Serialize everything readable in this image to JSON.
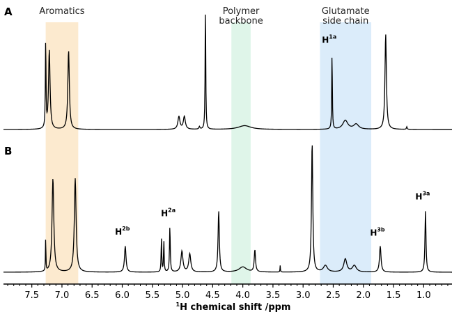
{
  "chart_data": {
    "type": "line",
    "xlabel_prefix": "1",
    "xlabel": "H chemical shift /ppm",
    "xlim": [
      7.97,
      0.53
    ],
    "x_ticks": [
      7.5,
      7.0,
      6.5,
      6.0,
      5.5,
      5.0,
      4.5,
      4.0,
      3.5,
      3.0,
      2.5,
      2.0,
      1.5,
      1.0
    ],
    "x_tick_labels": [
      "7.5",
      "7.0",
      "6.5",
      "6.0",
      "5.5",
      "5.0",
      "4.5",
      "4.0",
      "3.5",
      "3.0",
      "2.5",
      "2.0",
      "1.5",
      "1.0"
    ],
    "regions": [
      {
        "label_lines": [
          "Aromatics"
        ],
        "range": [
          7.27,
          6.73
        ],
        "color": "#fbe3bf"
      },
      {
        "label_lines": [
          "Polymer",
          "backbone"
        ],
        "range": [
          4.19,
          3.87
        ],
        "color": "#d4f1e2"
      },
      {
        "label_lines": [
          "Glutamate",
          "side chain"
        ],
        "range": [
          2.72,
          1.87
        ],
        "color": "#cfe6f8"
      }
    ],
    "series": [
      {
        "name": "A",
        "peaks": [
          {
            "ppm": 7.27,
            "height": 0.7,
            "width": 0.012
          },
          {
            "ppm": 7.21,
            "height": 0.62,
            "width": 0.03
          },
          {
            "ppm": 6.89,
            "height": 0.62,
            "width": 0.03
          },
          {
            "ppm": 5.06,
            "height": 0.1,
            "width": 0.04
          },
          {
            "ppm": 4.97,
            "height": 0.1,
            "width": 0.04
          },
          {
            "ppm": 4.62,
            "height": 1.0,
            "width": 0.012
          },
          {
            "ppm": 4.72,
            "height": 0.02,
            "width": 0.02
          },
          {
            "ppm": 3.97,
            "height": 0.03,
            "width": 0.25
          },
          {
            "ppm": 2.52,
            "height": 0.6,
            "width": 0.012
          },
          {
            "ppm": 2.3,
            "height": 0.07,
            "width": 0.1
          },
          {
            "ppm": 2.12,
            "height": 0.04,
            "width": 0.1
          },
          {
            "ppm": 1.63,
            "height": 0.75,
            "width": 0.028
          },
          {
            "ppm": 1.28,
            "height": 0.02,
            "width": 0.015
          }
        ],
        "peak_labels": [
          {
            "text": "H",
            "sup": "1a",
            "ppm": 2.52,
            "level": 0.68
          }
        ]
      },
      {
        "name": "B",
        "peaks": [
          {
            "ppm": 7.27,
            "height": 0.28,
            "width": 0.008
          },
          {
            "ppm": 7.15,
            "height": 0.72,
            "width": 0.035
          },
          {
            "ppm": 6.78,
            "height": 0.72,
            "width": 0.035
          },
          {
            "ppm": 5.95,
            "height": 0.2,
            "width": 0.03
          },
          {
            "ppm": 5.35,
            "height": 0.26,
            "width": 0.012
          },
          {
            "ppm": 5.31,
            "height": 0.24,
            "width": 0.012
          },
          {
            "ppm": 5.21,
            "height": 0.35,
            "width": 0.015
          },
          {
            "ppm": 5.01,
            "height": 0.16,
            "width": 0.04
          },
          {
            "ppm": 4.88,
            "height": 0.14,
            "width": 0.04
          },
          {
            "ppm": 4.4,
            "height": 0.47,
            "width": 0.025
          },
          {
            "ppm": 4.0,
            "height": 0.04,
            "width": 0.15
          },
          {
            "ppm": 3.8,
            "height": 0.17,
            "width": 0.025
          },
          {
            "ppm": 3.38,
            "height": 0.05,
            "width": 0.008
          },
          {
            "ppm": 2.85,
            "height": 1.0,
            "width": 0.025
          },
          {
            "ppm": 2.63,
            "height": 0.05,
            "width": 0.08
          },
          {
            "ppm": 2.3,
            "height": 0.1,
            "width": 0.06
          },
          {
            "ppm": 2.15,
            "height": 0.05,
            "width": 0.08
          },
          {
            "ppm": 1.72,
            "height": 0.2,
            "width": 0.03
          },
          {
            "ppm": 0.97,
            "height": 0.47,
            "width": 0.02
          }
        ],
        "peak_labels": [
          {
            "text": "H",
            "sup": "2b",
            "ppm": 5.95,
            "level": 0.29
          },
          {
            "text": "H",
            "sup": "2a",
            "ppm": 5.19,
            "level": 0.43
          },
          {
            "text": "H",
            "sup": "3b",
            "ppm": 1.72,
            "level": 0.28
          },
          {
            "text": "H",
            "sup": "3a",
            "ppm": 0.97,
            "level": 0.56
          }
        ]
      }
    ]
  }
}
